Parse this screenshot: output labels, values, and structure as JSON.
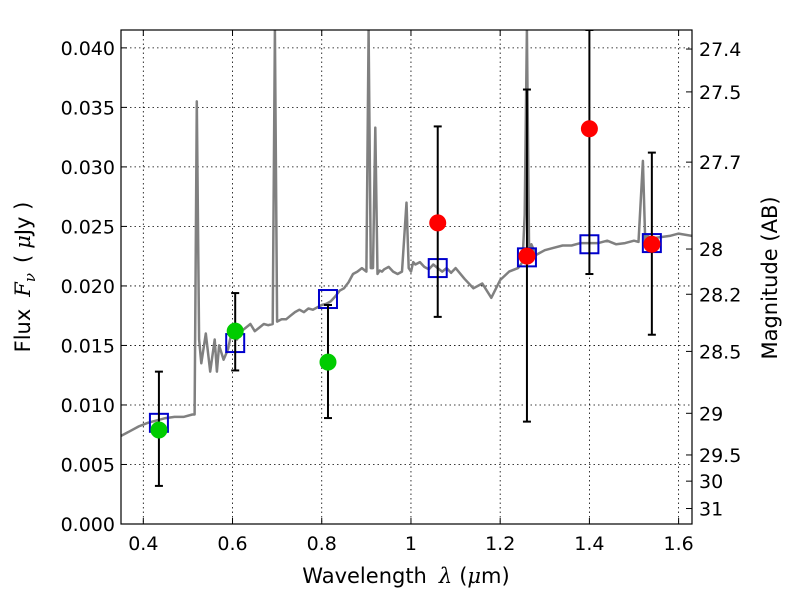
{
  "chart_data": {
    "type": "scatter",
    "xlabel": "Wavelength",
    "xlabel_symbol": "λ",
    "xlabel_unit_pre": "(",
    "xlabel_unit_mu": "μ",
    "xlabel_unit_post": "m)",
    "ylabel": "Flux",
    "ylabel_symbol": "F",
    "ylabel_subscript": "ν",
    "ylabel_unit_pre": "(",
    "ylabel_unit_mu": "μ",
    "ylabel_unit_post": "Jy )",
    "y2label": "Magnitude (AB)",
    "xlim": [
      0.35,
      1.63
    ],
    "ylim": [
      0.0,
      0.0415
    ],
    "grid": true,
    "x_ticks": [
      {
        "value": 0.4,
        "label": "0.4"
      },
      {
        "value": 0.6,
        "label": "0.6"
      },
      {
        "value": 0.8,
        "label": "0.8"
      },
      {
        "value": 1.0,
        "label": "1"
      },
      {
        "value": 1.2,
        "label": "1.2"
      },
      {
        "value": 1.4,
        "label": "1.4"
      },
      {
        "value": 1.6,
        "label": "1.6"
      }
    ],
    "y_ticks": [
      {
        "value": 0.0,
        "label": "0.000"
      },
      {
        "value": 0.005,
        "label": "0.005"
      },
      {
        "value": 0.01,
        "label": "0.010"
      },
      {
        "value": 0.015,
        "label": "0.015"
      },
      {
        "value": 0.02,
        "label": "0.020"
      },
      {
        "value": 0.025,
        "label": "0.025"
      },
      {
        "value": 0.03,
        "label": "0.030"
      },
      {
        "value": 0.035,
        "label": "0.035"
      },
      {
        "value": 0.04,
        "label": "0.040"
      }
    ],
    "y2_ticks": [
      {
        "flux": 0.0013,
        "label": "31"
      },
      {
        "flux": 0.0036,
        "label": "30"
      },
      {
        "flux": 0.0058,
        "label": "29.5"
      },
      {
        "flux": 0.0093,
        "label": "29"
      },
      {
        "flux": 0.0145,
        "label": "28.5"
      },
      {
        "flux": 0.0193,
        "label": "28.2"
      },
      {
        "flux": 0.0231,
        "label": "28"
      },
      {
        "flux": 0.0304,
        "label": "27.7"
      },
      {
        "flux": 0.0363,
        "label": "27.5"
      },
      {
        "flux": 0.0399,
        "label": "27.4"
      }
    ],
    "series": [
      {
        "kind": "model_spectrum",
        "color": "#808080",
        "x": [
          0.35,
          0.37,
          0.39,
          0.41,
          0.43,
          0.45,
          0.47,
          0.49,
          0.51,
          0.515,
          0.52,
          0.525,
          0.53,
          0.54,
          0.55,
          0.56,
          0.565,
          0.57,
          0.58,
          0.59,
          0.6,
          0.61,
          0.62,
          0.63,
          0.64,
          0.65,
          0.66,
          0.67,
          0.68,
          0.69,
          0.695,
          0.7,
          0.705,
          0.71,
          0.72,
          0.73,
          0.74,
          0.75,
          0.76,
          0.77,
          0.78,
          0.79,
          0.8,
          0.81,
          0.82,
          0.83,
          0.84,
          0.85,
          0.86,
          0.87,
          0.88,
          0.89,
          0.9,
          0.905,
          0.91,
          0.915,
          0.92,
          0.925,
          0.93,
          0.935,
          0.94,
          0.95,
          0.96,
          0.97,
          0.98,
          0.99,
          0.995,
          1.0,
          1.005,
          1.01,
          1.02,
          1.03,
          1.04,
          1.05,
          1.06,
          1.07,
          1.08,
          1.09,
          1.1,
          1.12,
          1.14,
          1.16,
          1.18,
          1.2,
          1.22,
          1.24,
          1.25,
          1.255,
          1.26,
          1.265,
          1.27,
          1.28,
          1.3,
          1.32,
          1.34,
          1.36,
          1.38,
          1.4,
          1.42,
          1.44,
          1.46,
          1.48,
          1.5,
          1.51,
          1.52,
          1.525,
          1.53,
          1.54,
          1.56,
          1.58,
          1.6,
          1.63
        ],
        "y": [
          0.0074,
          0.0078,
          0.0082,
          0.0085,
          0.0087,
          0.0089,
          0.009,
          0.009,
          0.0092,
          0.0092,
          0.0355,
          0.0155,
          0.0135,
          0.016,
          0.0128,
          0.0155,
          0.0128,
          0.015,
          0.0138,
          0.0147,
          0.0165,
          0.0155,
          0.0162,
          0.0165,
          0.0168,
          0.0162,
          0.0165,
          0.0168,
          0.0167,
          0.0168,
          0.0415,
          0.017,
          0.0171,
          0.0172,
          0.0172,
          0.0175,
          0.0178,
          0.018,
          0.0178,
          0.0181,
          0.018,
          0.0182,
          0.0184,
          0.0185,
          0.0187,
          0.0191,
          0.0196,
          0.0198,
          0.0203,
          0.021,
          0.0212,
          0.0215,
          0.0212,
          0.0415,
          0.0215,
          0.0215,
          0.0333,
          0.021,
          0.0213,
          0.0212,
          0.0214,
          0.0216,
          0.0212,
          0.021,
          0.0212,
          0.027,
          0.0215,
          0.0212,
          0.022,
          0.0218,
          0.022,
          0.0216,
          0.0214,
          0.0218,
          0.0215,
          0.0212,
          0.0215,
          0.0211,
          0.0215,
          0.0206,
          0.0198,
          0.0202,
          0.019,
          0.0205,
          0.0212,
          0.0215,
          0.022,
          0.026,
          0.0415,
          0.022,
          0.0235,
          0.0226,
          0.023,
          0.0232,
          0.0234,
          0.0234,
          0.0236,
          0.0236,
          0.0236,
          0.0238,
          0.0235,
          0.0236,
          0.0238,
          0.0237,
          0.0305,
          0.0238,
          0.0242,
          0.024,
          0.0241,
          0.0242,
          0.0244,
          0.0242
        ]
      },
      {
        "kind": "model_photometry",
        "marker": "open-square",
        "color": "#0000cc",
        "x": [
          0.435,
          0.606,
          0.814,
          1.06,
          1.26,
          1.4,
          1.54
        ],
        "y": [
          0.0085,
          0.0152,
          0.0189,
          0.0215,
          0.0224,
          0.0235,
          0.0236
        ]
      },
      {
        "kind": "observed_detections",
        "marker": "filled-circle",
        "color": "#00cc00",
        "x": [
          0.435,
          0.606,
          0.814
        ],
        "y": [
          0.0079,
          0.0162,
          0.0136
        ],
        "err_low": [
          0.0032,
          0.0129,
          0.0089
        ],
        "err_high": [
          0.0128,
          0.0194,
          0.0184
        ]
      },
      {
        "kind": "observed_upper_limits",
        "marker": "filled-circle",
        "color": "#ff0000",
        "x": [
          1.06,
          1.26,
          1.4,
          1.54
        ],
        "y": [
          0.0253,
          0.0225,
          0.0332,
          0.0235
        ],
        "err_low": [
          0.0174,
          0.0086,
          0.021,
          0.0159
        ],
        "err_high": [
          0.0334,
          0.0365,
          0.0415,
          0.0312
        ]
      }
    ]
  }
}
